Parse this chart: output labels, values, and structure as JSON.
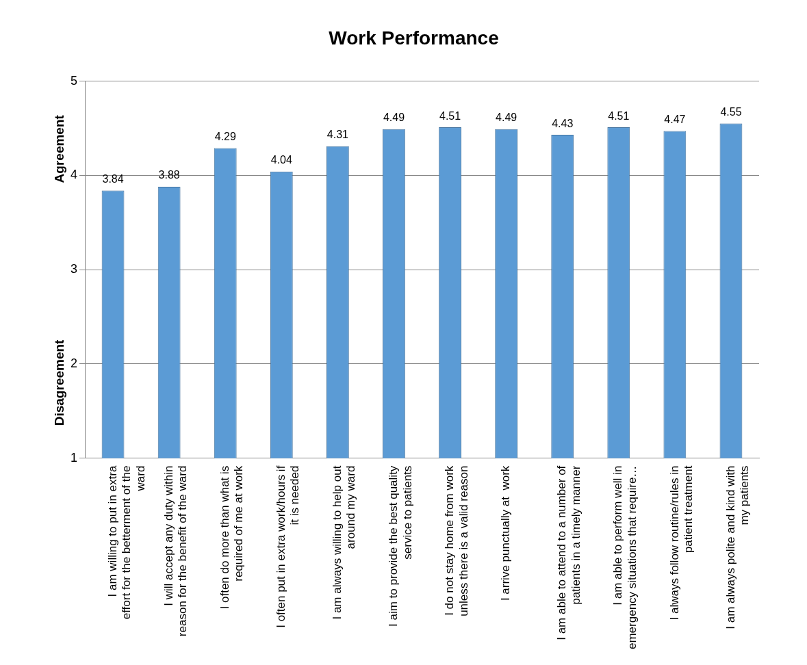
{
  "chart_data": {
    "type": "bar",
    "title": "Work Performance",
    "categories": [
      "I am willing to put in extra effort for the betterment of the ward",
      "I will accept any duty within reason for the benefit of the ward",
      "I often do more than what is required of me at work",
      "I often put in extra work/hours if it is needed",
      "I am always willing to help out around my ward",
      "I aim to provide the best quality service to patients",
      "I do not stay home from work unless there is a valid reason",
      "I arrive punctually at  work",
      "I am able to attend to a number of patients in a timely manner",
      "I am able to perform well in emergency situations that require…",
      "I always follow routine/rules in patient treatment",
      "I am always polite and kind with my patients"
    ],
    "values": [
      3.84,
      3.88,
      4.29,
      4.04,
      4.31,
      4.49,
      4.51,
      4.49,
      4.43,
      4.51,
      4.47,
      4.55
    ],
    "color": "#5b9bd5",
    "ylim": [
      1,
      5
    ],
    "yticks": [
      1,
      2,
      3,
      4,
      5
    ],
    "grid": "y",
    "data_labels": true,
    "legend": false,
    "annotations": [
      "Agreement",
      "Disagreement"
    ]
  }
}
